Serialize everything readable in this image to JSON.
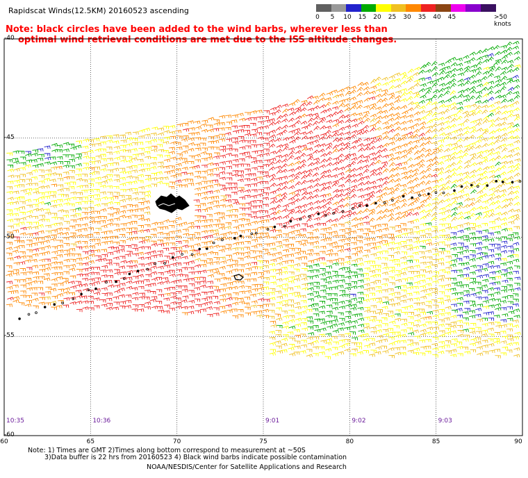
{
  "title": "Rapidscat Winds(12.5KM) 20160523 ascending",
  "note": {
    "line1": "Note: black circles have been added to the wind barbs, wherever less than",
    "line2": "optimal wind retrieval conditions are met due to the ISS altitude changes."
  },
  "legend": {
    "unit": ">50 knots",
    "bins": [
      {
        "label": "0",
        "color": "#606060"
      },
      {
        "label": "5",
        "color": "#999999"
      },
      {
        "label": "10",
        "color": "#2222cc"
      },
      {
        "label": "15",
        "color": "#00aa00"
      },
      {
        "label": "20",
        "color": "#ffff00"
      },
      {
        "label": "25",
        "color": "#f0c020"
      },
      {
        "label": "30",
        "color": "#ff8800"
      },
      {
        "label": "35",
        "color": "#ee2222"
      },
      {
        "label": "40",
        "color": "#8b4513"
      },
      {
        "label": "45",
        "color": "#ee00ee"
      },
      {
        "label": "",
        "color": "#8800cc"
      },
      {
        "label": "",
        "color": "#3a1060"
      }
    ]
  },
  "latitudes": [
    "-40",
    "-45",
    "-50",
    "-55",
    "-60"
  ],
  "longitudes": [
    "60",
    "65",
    "70",
    "75",
    "80",
    "85",
    "90"
  ],
  "times": [
    {
      "label": "10:35",
      "lon": 60
    },
    {
      "label": "10:36",
      "lon": 65
    },
    {
      "label": "9:01",
      "lon": 75
    },
    {
      "label": "9:02",
      "lon": 80
    },
    {
      "label": "9:03",
      "lon": 85
    }
  ],
  "footnote": {
    "line1": "Note: 1) Times are GMT 2)Times along bottom correspond to measurement at ~50S",
    "line2": "3)Data buffer is 22 hrs from 20160523 4) Black wind barbs indicate possible contamination"
  },
  "credit": "NOAA/NESDIS/Center for Satellite Applications and Research"
}
